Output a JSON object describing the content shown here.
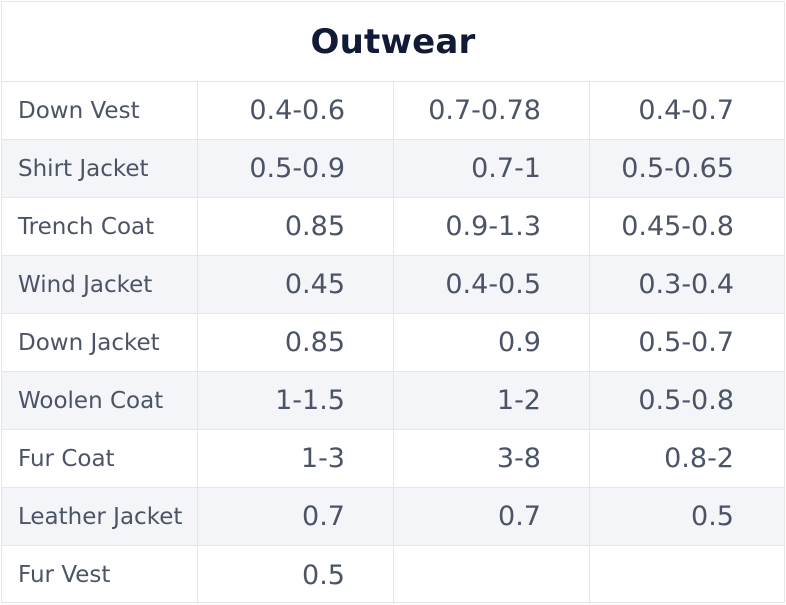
{
  "table": {
    "title": "Outwear",
    "rows": [
      {
        "name": "Down Vest",
        "values": [
          "0.4-0.6",
          "0.7-0.78",
          "0.4-0.7"
        ]
      },
      {
        "name": "Shirt Jacket",
        "values": [
          "0.5-0.9",
          "0.7-1",
          "0.5-0.65"
        ]
      },
      {
        "name": "Trench Coat",
        "values": [
          "0.85",
          "0.9-1.3",
          "0.45-0.8"
        ]
      },
      {
        "name": "Wind Jacket",
        "values": [
          "0.45",
          "0.4-0.5",
          "0.3-0.4"
        ]
      },
      {
        "name": "Down Jacket",
        "values": [
          "0.85",
          "0.9",
          "0.5-0.7"
        ]
      },
      {
        "name": "Woolen Coat",
        "values": [
          "1-1.5",
          "1-2",
          "0.5-0.8"
        ]
      },
      {
        "name": "Fur Coat",
        "values": [
          "1-3",
          "3-8",
          "0.8-2"
        ]
      },
      {
        "name": "Leather Jacket",
        "values": [
          "0.7",
          "0.7",
          "0.5"
        ]
      },
      {
        "name": "Fur Vest",
        "values": [
          "0.5",
          "",
          ""
        ]
      }
    ]
  },
  "colors": {
    "title": "#111a36",
    "text": "#4b5467",
    "border": "#e3e6ea",
    "alt_row_bg": "#f3f5f8"
  }
}
